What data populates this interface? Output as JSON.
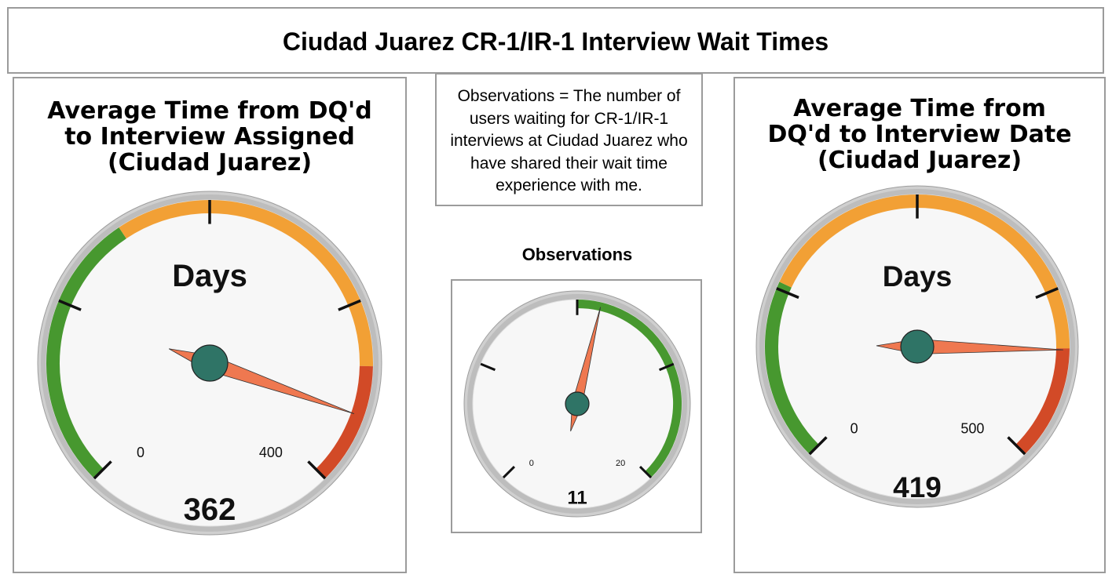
{
  "header": {
    "title": "Ciudad Juarez CR-1/IR-1 Interview Wait Times"
  },
  "note": {
    "text": "Observations = The number of users waiting for CR-1/IR-1 interviews at Ciudad Juarez who have shared their wait time experience with me."
  },
  "observations_heading": "Observations",
  "colors": {
    "green": "#47982f",
    "orange": "#f2a035",
    "red": "#d24a27",
    "needle": "#ef7850",
    "hub": "#2f7466",
    "face": "#f7f7f7",
    "rim": "#bdbdbd"
  },
  "chart_data": [
    {
      "type": "gauge",
      "title": "Average Time from DQ'd to Interview Assigned (Ciudad Juarez)",
      "title_lines": [
        "Average Time from DQ'd",
        "to Interview Assigned",
        "(Ciudad Juarez)"
      ],
      "unit_label": "Days",
      "value": 362,
      "value_label": "362",
      "min": 0,
      "max": 400,
      "min_label": "0",
      "max_label": "400",
      "major_ticks": 4,
      "bands": [
        {
          "from": 0,
          "to": 150,
          "color": "#47982f"
        },
        {
          "from": 150,
          "to": 335,
          "color": "#f2a035"
        },
        {
          "from": 335,
          "to": 400,
          "color": "#d24a27"
        }
      ]
    },
    {
      "type": "gauge",
      "title": "Observations",
      "unit_label": "",
      "value": 11,
      "value_label": "11",
      "min": 0,
      "max": 20,
      "min_label": "0",
      "max_label": "20",
      "major_ticks": 4,
      "bands": [
        {
          "from": 10,
          "to": 20,
          "color": "#47982f"
        }
      ]
    },
    {
      "type": "gauge",
      "title": "Average Time from DQ'd to Interview Date (Ciudad Juarez)",
      "title_lines": [
        "Average Time from",
        "DQ'd to Interview Date",
        "(Ciudad Juarez)"
      ],
      "unit_label": "Days",
      "value": 419,
      "value_label": "419",
      "min": 0,
      "max": 500,
      "min_label": "0",
      "max_label": "500",
      "major_ticks": 4,
      "bands": [
        {
          "from": 0,
          "to": 130,
          "color": "#47982f"
        },
        {
          "from": 130,
          "to": 418,
          "color": "#f2a035"
        },
        {
          "from": 418,
          "to": 500,
          "color": "#d24a27"
        }
      ]
    }
  ]
}
